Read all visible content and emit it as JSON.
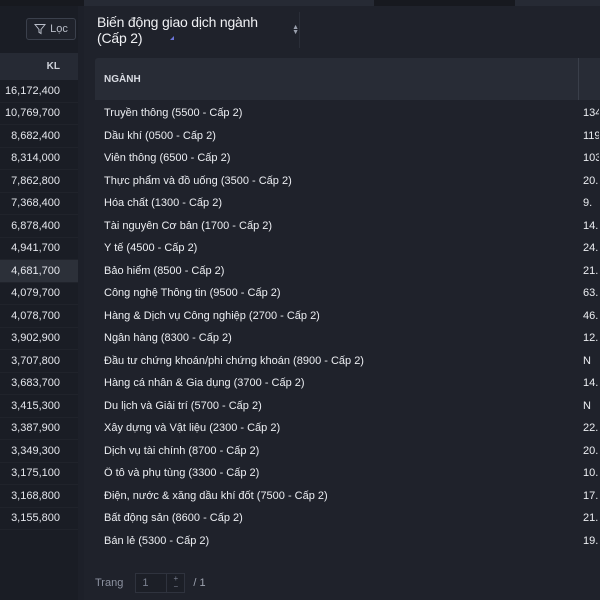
{
  "left_panel": {
    "filter_label": "Lọc",
    "column_header": "KL",
    "values": [
      "16,172,400",
      "10,769,700",
      "8,682,400",
      "8,314,000",
      "7,862,800",
      "7,368,400",
      "6,878,400",
      "4,941,700",
      "4,681,700",
      "4,079,700",
      "4,078,700",
      "3,902,900",
      "3,707,800",
      "3,683,700",
      "3,415,300",
      "3,387,900",
      "3,349,300",
      "3,175,100",
      "3,168,800",
      "3,155,800"
    ],
    "highlighted_index": 8
  },
  "main_panel": {
    "title": "Biến động giao dịch ngành (Cấp 2)",
    "header": {
      "col_name": "NGÀNH",
      "col_value": ""
    },
    "rows": [
      {
        "name": "Truyền thông (5500 - Cấp 2)",
        "value": "134."
      },
      {
        "name": "Dầu khí (0500 - Cấp 2)",
        "value": "119."
      },
      {
        "name": "Viễn thông (6500 - Cấp 2)",
        "value": "103."
      },
      {
        "name": "Thực phẩm và đồ uống (3500 - Cấp 2)",
        "value": "20."
      },
      {
        "name": "Hóa chất (1300 - Cấp 2)",
        "value": "9."
      },
      {
        "name": "Tài nguyên Cơ bản (1700 - Cấp 2)",
        "value": "14."
      },
      {
        "name": "Y tế (4500 - Cấp 2)",
        "value": "24."
      },
      {
        "name": "Bảo hiểm (8500 - Cấp 2)",
        "value": "21."
      },
      {
        "name": "Công nghệ Thông tin (9500 - Cấp 2)",
        "value": "63."
      },
      {
        "name": "Hàng & Dịch vụ Công nghiệp (2700 - Cấp 2)",
        "value": "46."
      },
      {
        "name": "Ngân hàng (8300 - Cấp 2)",
        "value": "12."
      },
      {
        "name": "Đầu tư chứng khoán/phi chứng khoán (8900 - Cấp 2)",
        "value": "N"
      },
      {
        "name": "Hàng cá nhân & Gia dụng (3700 - Cấp 2)",
        "value": "14."
      },
      {
        "name": "Du lịch và Giải trí (5700 - Cấp 2)",
        "value": "N"
      },
      {
        "name": "Xây dựng và Vật liệu (2300 - Cấp 2)",
        "value": "22."
      },
      {
        "name": "Dịch vụ tài chính (8700 - Cấp 2)",
        "value": "20."
      },
      {
        "name": "Ô tô và phụ tùng (3300 - Cấp 2)",
        "value": "10."
      },
      {
        "name": "Điện, nước & xăng dầu khí đốt (7500 - Cấp 2)",
        "value": "17."
      },
      {
        "name": "Bất động sản (8600 - Cấp 2)",
        "value": "21."
      },
      {
        "name": "Bán lẻ (5300 - Cấp 2)",
        "value": "19."
      }
    ],
    "pager": {
      "label": "Trang",
      "current": "1",
      "total": "/ 1"
    }
  },
  "icons": {
    "filter": "filter-icon",
    "sort": "sort-icon",
    "stepper_up": "plus-icon",
    "stepper_down": "minus-icon"
  },
  "colors": {
    "background": "#1d2029",
    "header": "#282c36",
    "accent": "#6b74d8",
    "text": "#eceef2"
  }
}
